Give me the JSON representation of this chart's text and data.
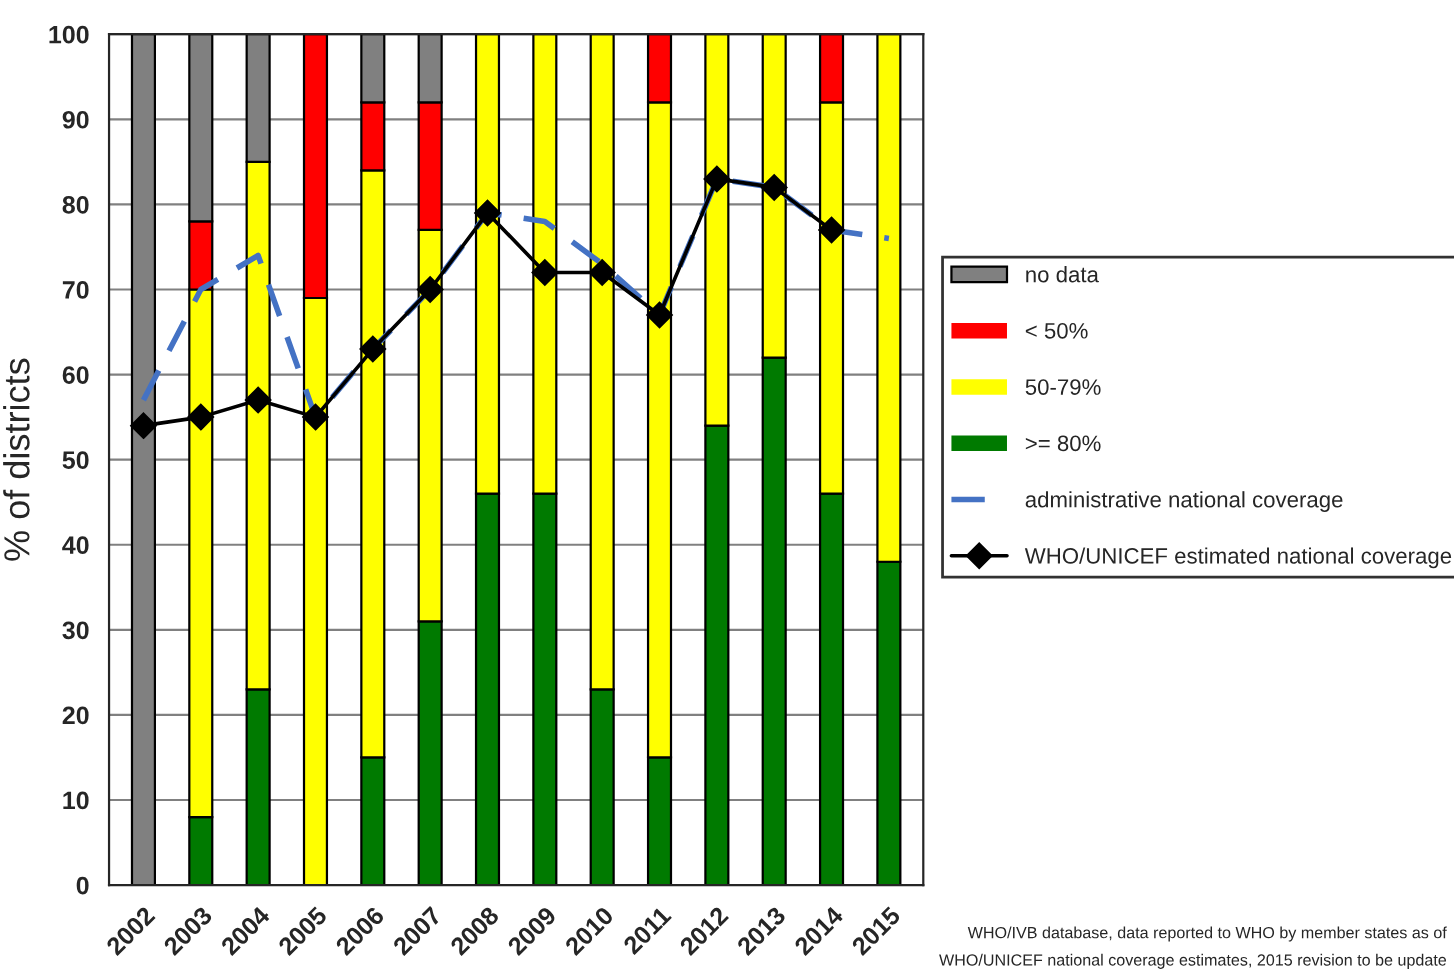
{
  "chart_data": {
    "type": "bar",
    "stacked": true,
    "ylabel": "% of districts",
    "categories": [
      "2002",
      "2003",
      "2004",
      "2005",
      "2006",
      "2007",
      "2008",
      "2009",
      "2010",
      "2011",
      "2012",
      "2013",
      "2014",
      "2015"
    ],
    "series": [
      {
        "name": ">= 80%",
        "color": "#007a00",
        "values": [
          0,
          8,
          23,
          0,
          15,
          31,
          46,
          46,
          23,
          15,
          54,
          62,
          46,
          38
        ]
      },
      {
        "name": "50-79%",
        "color": "#ffff00",
        "values": [
          0,
          62,
          62,
          69,
          69,
          46,
          54,
          54,
          77,
          77,
          46,
          38,
          46,
          62
        ]
      },
      {
        "name": "< 50%",
        "color": "#ff0000",
        "values": [
          0,
          8,
          0,
          31,
          8,
          15,
          0,
          0,
          0,
          8,
          0,
          0,
          8,
          0
        ]
      },
      {
        "name": "no data",
        "color": "#808080",
        "values": [
          100,
          22,
          15,
          0,
          8,
          8,
          0,
          0,
          0,
          0,
          0,
          0,
          0,
          0
        ]
      },
      {
        "name": "administrative national coverage",
        "type": "line",
        "color": "#4472c4",
        "line_style": "dashed",
        "marker": "none",
        "values": [
          57,
          70,
          74,
          55,
          63,
          70,
          79,
          78,
          73,
          67,
          83,
          82,
          77,
          76
        ]
      },
      {
        "name": "WHO/UNICEF estimated national coverage",
        "type": "line",
        "color": "#000000",
        "line_style": "solid",
        "marker": "diamond",
        "values": [
          54,
          55,
          57,
          55,
          63,
          70,
          79,
          72,
          72,
          67,
          83,
          82,
          77,
          null
        ]
      }
    ],
    "ylim": [
      0,
      100
    ],
    "yticks": [
      0,
      10,
      20,
      30,
      40,
      50,
      60,
      70,
      80,
      90,
      100
    ],
    "grid": "y",
    "legend": "right",
    "annotations": [
      "WHO/IVB database, data reported to WHO by member states as of",
      "WHO/UNICEF national coverage estimates, 2015 revision to be update"
    ]
  }
}
